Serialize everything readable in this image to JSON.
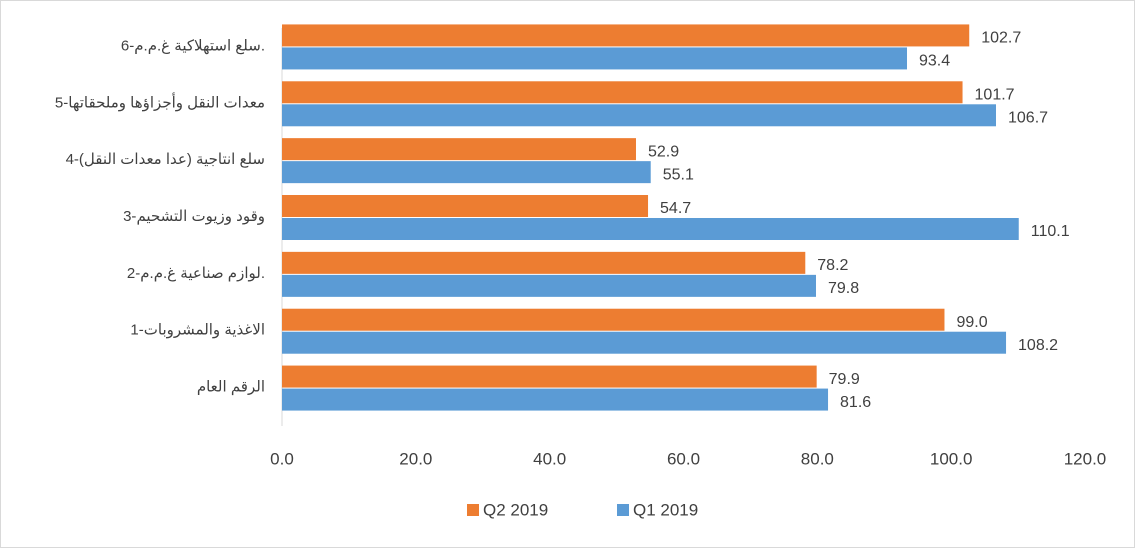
{
  "chart_data": {
    "type": "hbar",
    "categories": [
      "6-سلع استهلاكية غ.م.م.",
      "5-معدات النقل وأجزاؤها وملحقاتها",
      "4-سلع انتاجية (عدا معدات النقل)",
      "3-وقود وزيوت التشحيم",
      "2-لوازم صناعية غ.م.م.",
      "1-الاغذية والمشروبات",
      "الرقم العام"
    ],
    "series": [
      {
        "name": "Q2 2019",
        "color": "#ed7d31",
        "values": [
          102.7,
          101.7,
          52.9,
          54.7,
          78.2,
          99.0,
          79.9
        ],
        "value_labels": [
          "102.7",
          "101.7",
          "52.9",
          "54.7",
          "78.2",
          "99.0",
          "79.9"
        ]
      },
      {
        "name": "Q1 2019",
        "color": "#5b9bd5",
        "values": [
          93.4,
          106.7,
          55.1,
          110.1,
          79.8,
          108.2,
          81.6
        ],
        "value_labels": [
          "93.4",
          "106.7",
          "55.1",
          "110.1",
          "79.8",
          "108.2",
          "81.6"
        ]
      }
    ],
    "xlim": [
      0,
      120
    ],
    "xticks": [
      {
        "value": 0,
        "label": "0.0"
      },
      {
        "value": 20,
        "label": "20.0"
      },
      {
        "value": 40,
        "label": "40.0"
      },
      {
        "value": 60,
        "label": "60.0"
      },
      {
        "value": 80,
        "label": "80.0"
      },
      {
        "value": 100,
        "label": "100.0"
      },
      {
        "value": 120,
        "label": "120.0"
      }
    ],
    "legend": "bottom"
  }
}
